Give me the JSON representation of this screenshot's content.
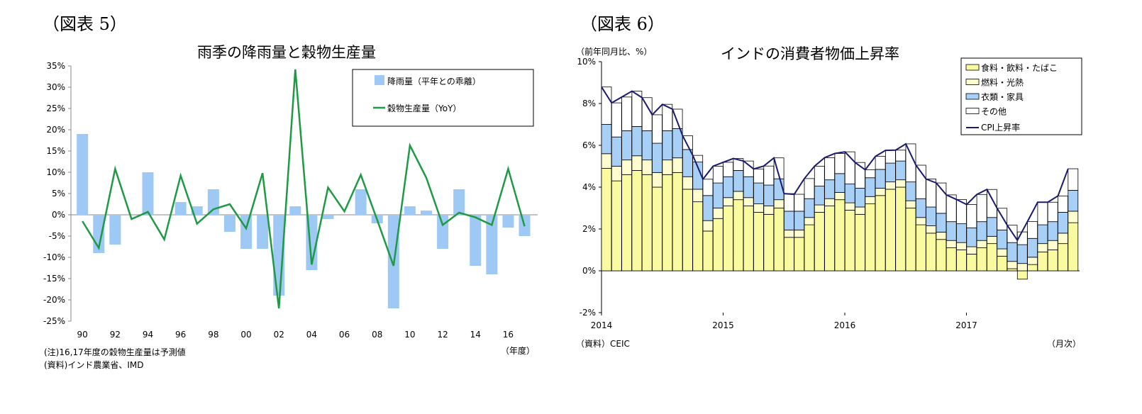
{
  "left": {
    "figure_label": "（図表 5）",
    "notes": [
      "(注)16,17年度の穀物生産量は予測値",
      "(資料)インド農業省、IMD"
    ],
    "unit_label": "（年度）"
  },
  "right": {
    "figure_label": "（図表 6）",
    "source": "（資料）CEIC",
    "unit_label": "（月次）",
    "y_unit": "（前年同月比、%）"
  },
  "chart_data": [
    {
      "type": "bar",
      "title": "雨季の降雨量と穀物生産量",
      "x": [
        1990,
        1991,
        1992,
        1993,
        1994,
        1995,
        1996,
        1997,
        1998,
        1999,
        2000,
        2001,
        2002,
        2003,
        2004,
        2005,
        2006,
        2007,
        2008,
        2009,
        2010,
        2011,
        2012,
        2013,
        2014,
        2015,
        2016,
        2017
      ],
      "xtick_labels": [
        "90",
        "92",
        "94",
        "96",
        "98",
        "00",
        "02",
        "04",
        "06",
        "08",
        "10",
        "12",
        "14",
        "16"
      ],
      "ylim": [
        -25,
        35
      ],
      "yticks": [
        "35%",
        "30%",
        "25%",
        "20%",
        "15%",
        "10%",
        "5%",
        "0%",
        "-5%",
        "-10%",
        "-15%",
        "-20%",
        "-25%"
      ],
      "legend_position": "top-right",
      "series": [
        {
          "name": "降雨量（平年との乖離）",
          "kind": "bar",
          "color": "#9ec9f5",
          "values": [
            19,
            -9,
            -7,
            0,
            10,
            0,
            3,
            2,
            6,
            -4,
            -8,
            -8,
            -19,
            2,
            -13,
            -1,
            0,
            6,
            -2,
            -22,
            2,
            1,
            -8,
            6,
            -12,
            -14,
            -3,
            -5
          ]
        },
        {
          "name": "穀物生産量（YoY）",
          "kind": "line",
          "color": "#1e9a45",
          "values": [
            -1.5,
            -7.8,
            10.8,
            -1,
            0.7,
            -5.8,
            9.2,
            -2.1,
            1.3,
            2.5,
            -3.2,
            9.8,
            -22,
            34.2,
            -11.7,
            6.4,
            0.8,
            9.4,
            -1.2,
            -12,
            16.3,
            8.7,
            -2.4,
            0.5,
            -0.6,
            -2.4,
            10.8,
            -2.7
          ]
        }
      ]
    },
    {
      "type": "bar",
      "stacked": true,
      "title": "インドの消費者物価上昇率",
      "x_start": "2014-01",
      "x_end": "2017-11",
      "xtick_labels": [
        "2014",
        "2015",
        "2016",
        "2017"
      ],
      "ylim": [
        -2,
        10
      ],
      "yticks": [
        "10%",
        "8%",
        "6%",
        "4%",
        "2%",
        "0%",
        "-2%"
      ],
      "legend_position": "top-right",
      "series": [
        {
          "name": "食料・飲料・たばこ",
          "color": "#fafaa0",
          "values": [
            4.9,
            4.3,
            4.6,
            4.8,
            4.6,
            4.0,
            4.6,
            4.7,
            3.9,
            3.3,
            1.9,
            2.5,
            3.1,
            3.4,
            3.1,
            2.8,
            2.7,
            3.0,
            1.6,
            1.6,
            2.2,
            2.8,
            3.1,
            3.4,
            2.9,
            2.7,
            3.2,
            3.6,
            3.9,
            4.0,
            3.0,
            2.2,
            1.8,
            1.5,
            1.1,
            1.0,
            0.8,
            1.1,
            1.3,
            0.7,
            0.1,
            -0.4,
            0.3,
            0.9,
            1.0,
            1.3,
            2.3
          ]
        },
        {
          "name": "燃料・光熱",
          "color": "#fdfdd0",
          "values": [
            0.7,
            0.7,
            0.7,
            0.7,
            0.7,
            0.7,
            0.7,
            0.7,
            0.6,
            0.6,
            0.5,
            0.5,
            0.4,
            0.4,
            0.4,
            0.4,
            0.4,
            0.4,
            0.35,
            0.35,
            0.35,
            0.35,
            0.35,
            0.35,
            0.35,
            0.35,
            0.35,
            0.35,
            0.35,
            0.35,
            0.35,
            0.35,
            0.35,
            0.35,
            0.35,
            0.35,
            0.35,
            0.35,
            0.35,
            0.35,
            0.35,
            0.35,
            0.35,
            0.4,
            0.45,
            0.5,
            0.55
          ]
        },
        {
          "name": "衣類・家具",
          "color": "#a8cff5",
          "values": [
            1.4,
            1.4,
            1.4,
            1.4,
            1.4,
            1.4,
            1.4,
            1.4,
            1.3,
            1.3,
            1.2,
            1.2,
            1.0,
            1.0,
            1.0,
            1.0,
            1.0,
            1.0,
            0.9,
            0.9,
            0.9,
            0.9,
            0.9,
            0.9,
            0.9,
            0.9,
            0.9,
            0.9,
            0.9,
            0.9,
            0.9,
            0.9,
            0.9,
            0.9,
            0.9,
            0.9,
            0.9,
            0.9,
            0.9,
            0.9,
            0.9,
            0.9,
            0.9,
            0.9,
            0.9,
            1.0,
            1.0
          ]
        },
        {
          "name": "その他",
          "color": "#ffffff",
          "values": "remainder of CPI"
        },
        {
          "name": "CPI上昇率",
          "kind": "line",
          "color": "#1a1a6e",
          "values": [
            8.79,
            8.03,
            8.31,
            8.59,
            8.28,
            7.46,
            7.96,
            7.73,
            6.46,
            5.52,
            4.38,
            5.0,
            5.19,
            5.37,
            5.25,
            4.87,
            5.01,
            5.4,
            3.69,
            3.66,
            4.41,
            5.0,
            5.41,
            5.61,
            5.69,
            5.18,
            4.83,
            5.47,
            5.76,
            5.77,
            6.07,
            5.05,
            4.39,
            4.2,
            3.63,
            3.41,
            3.17,
            3.65,
            3.89,
            2.99,
            2.18,
            1.46,
            2.36,
            3.28,
            3.28,
            3.58,
            4.88
          ]
        }
      ]
    }
  ]
}
